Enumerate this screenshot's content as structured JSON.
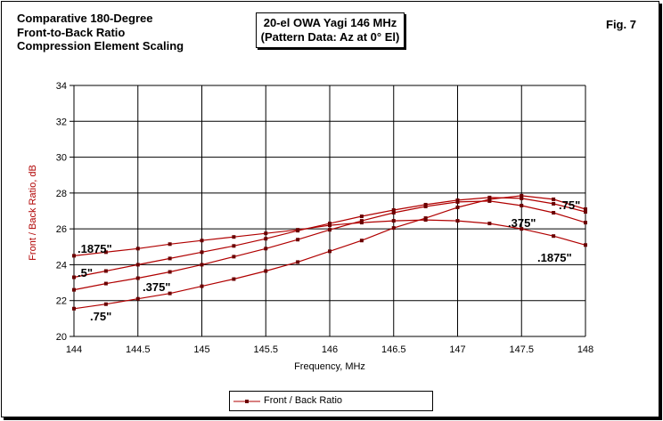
{
  "title_lines": [
    "Comparative 180-Degree",
    "Front-to-Back Ratio",
    "Compression Element Scaling"
  ],
  "subtitle_lines": [
    "20-el OWA Yagi 146 MHz",
    "(Pattern Data: Az at 0° El)"
  ],
  "fig_label": "Fig. 7",
  "colors": {
    "series": "#b00000",
    "grid": "#000000"
  },
  "chart_data": {
    "type": "line",
    "xlabel": "Frequency, MHz",
    "ylabel": "Front / Back Ratio,  dB",
    "xlim": [
      144,
      148
    ],
    "ylim": [
      20,
      34
    ],
    "x_ticks": [
      "144",
      "144.5",
      "145",
      "145.5",
      "146",
      "146.5",
      "147",
      "147.5",
      "148"
    ],
    "y_ticks": [
      "20",
      "22",
      "24",
      "26",
      "28",
      "30",
      "32",
      "34"
    ],
    "grid": true,
    "legend": {
      "position": "bottom",
      "entries": [
        "Front / Back Ratio"
      ]
    },
    "x": [
      144,
      144.25,
      144.5,
      144.75,
      145,
      145.25,
      145.5,
      145.75,
      146,
      146.25,
      146.5,
      146.75,
      147,
      147.25,
      147.5,
      147.75,
      148
    ],
    "series": [
      {
        "label": ".1875\"",
        "values": [
          24.5,
          24.7,
          24.9,
          25.15,
          25.35,
          25.55,
          25.75,
          25.95,
          26.2,
          26.35,
          26.45,
          26.5,
          26.45,
          26.3,
          26.0,
          25.6,
          25.1
        ]
      },
      {
        "label": ".5\"",
        "values": [
          23.3,
          23.65,
          24.0,
          24.35,
          24.7,
          25.05,
          25.45,
          25.9,
          26.3,
          26.7,
          27.05,
          27.35,
          27.6,
          27.75,
          27.7,
          27.4,
          26.95
        ]
      },
      {
        "label": ".375\"",
        "values": [
          22.6,
          22.95,
          23.25,
          23.6,
          24.0,
          24.45,
          24.9,
          25.4,
          25.95,
          26.45,
          26.9,
          27.25,
          27.5,
          27.55,
          27.3,
          26.9,
          26.35
        ]
      },
      {
        "label": ".75\"",
        "values": [
          21.55,
          21.8,
          22.1,
          22.4,
          22.8,
          23.2,
          23.65,
          24.15,
          24.75,
          25.35,
          26.05,
          26.6,
          27.2,
          27.65,
          27.85,
          27.65,
          27.1
        ]
      }
    ],
    "annotations": [
      ".1875\"",
      ".5\"",
      ".375\"",
      ".75\"",
      ".375\"",
      ".75\"",
      ".1875\""
    ]
  }
}
